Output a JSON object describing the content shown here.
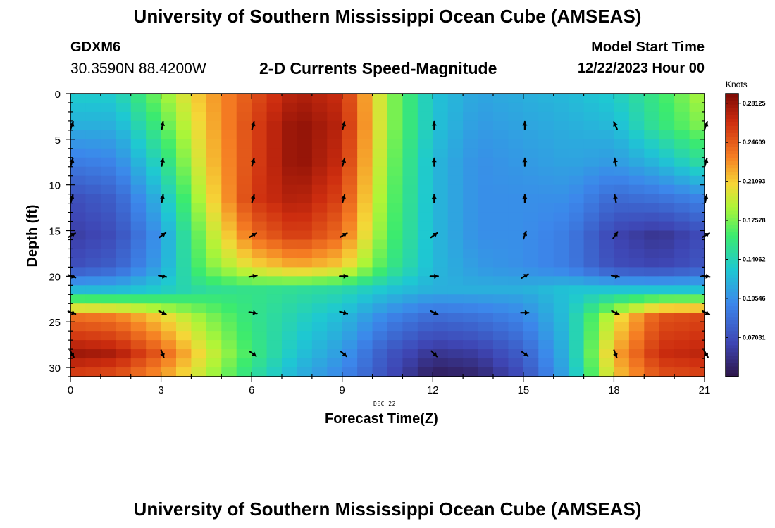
{
  "header": {
    "title": "University of Southern Mississippi Ocean Cube (AMSEAS)",
    "station_id": "GDXM6",
    "coordinates": "30.3590N  88.4200W",
    "model_start_label": "Model Start Time",
    "model_start_value": "12/22/2023 Hour 00"
  },
  "footer": {
    "title": "University of Southern Mississippi Ocean Cube (AMSEAS)"
  },
  "chart_data": {
    "type": "heatmap",
    "title": "2-D Currents Speed-Magnitude",
    "xlabel": "Forecast Time(Z)",
    "ylabel": "Depth (ft)",
    "date_marker": "DEC 22",
    "xlim": [
      0,
      21
    ],
    "ylim": [
      31,
      0
    ],
    "x_ticks": [
      0,
      3,
      6,
      9,
      12,
      15,
      18,
      21
    ],
    "y_ticks": [
      0,
      5,
      10,
      15,
      20,
      25,
      30
    ],
    "colorbar": {
      "title": "Knots",
      "range": [
        0.035,
        0.29
      ],
      "ticks": [
        "0.07031",
        "0.10546",
        "0.14062",
        "0.17578",
        "0.21093",
        "0.24609",
        "0.28125"
      ],
      "tick_values": [
        0.07031,
        0.10546,
        0.14062,
        0.17578,
        0.21093,
        0.24609,
        0.28125
      ]
    },
    "speed_knots": {
      "forecast_hours": [
        0,
        1.5,
        3,
        4.5,
        6,
        7.5,
        9,
        10.5,
        12,
        13.5,
        15,
        16.5,
        18,
        19.5,
        21
      ],
      "depths_ft": [
        0,
        3.5,
        7.5,
        11.5,
        15.5,
        19,
        21.5,
        24.5,
        28.5,
        31
      ],
      "values": [
        [
          0.135,
          0.135,
          0.18,
          0.22,
          0.25,
          0.275,
          0.265,
          0.185,
          0.13,
          0.115,
          0.12,
          0.125,
          0.135,
          0.16,
          0.19
        ],
        [
          0.12,
          0.12,
          0.165,
          0.215,
          0.255,
          0.285,
          0.27,
          0.185,
          0.13,
          0.11,
          0.115,
          0.12,
          0.125,
          0.155,
          0.18
        ],
        [
          0.095,
          0.1,
          0.145,
          0.21,
          0.255,
          0.285,
          0.265,
          0.18,
          0.125,
          0.105,
          0.11,
          0.115,
          0.11,
          0.125,
          0.15
        ],
        [
          0.07,
          0.08,
          0.125,
          0.2,
          0.26,
          0.275,
          0.255,
          0.175,
          0.125,
          0.105,
          0.105,
          0.105,
          0.085,
          0.09,
          0.1
        ],
        [
          0.06,
          0.07,
          0.11,
          0.185,
          0.24,
          0.26,
          0.24,
          0.17,
          0.125,
          0.105,
          0.105,
          0.095,
          0.065,
          0.055,
          0.07
        ],
        [
          0.07,
          0.08,
          0.115,
          0.175,
          0.205,
          0.22,
          0.21,
          0.16,
          0.125,
          0.11,
          0.105,
          0.095,
          0.07,
          0.065,
          0.075
        ],
        [
          0.125,
          0.125,
          0.135,
          0.15,
          0.155,
          0.15,
          0.145,
          0.13,
          0.12,
          0.12,
          0.12,
          0.13,
          0.13,
          0.13,
          0.13
        ],
        [
          0.24,
          0.235,
          0.21,
          0.18,
          0.155,
          0.14,
          0.125,
          0.1,
          0.085,
          0.09,
          0.1,
          0.13,
          0.2,
          0.25,
          0.255
        ],
        [
          0.28,
          0.275,
          0.245,
          0.2,
          0.16,
          0.13,
          0.11,
          0.075,
          0.055,
          0.06,
          0.08,
          0.125,
          0.22,
          0.265,
          0.27
        ],
        [
          0.255,
          0.25,
          0.225,
          0.19,
          0.15,
          0.12,
          0.1,
          0.07,
          0.04,
          0.045,
          0.07,
          0.12,
          0.21,
          0.25,
          0.255
        ]
      ]
    },
    "vectors": {
      "times": [
        0,
        3,
        6,
        9,
        12,
        15,
        18,
        21
      ],
      "depths_ft": [
        3.5,
        7.5,
        11.5,
        15.5,
        20,
        24,
        28.5
      ],
      "direction_deg": [
        [
          20,
          10,
          15,
          15,
          0,
          0,
          -25,
          20
        ],
        [
          15,
          10,
          15,
          15,
          0,
          0,
          -10,
          15
        ],
        [
          15,
          10,
          15,
          15,
          0,
          0,
          -10,
          10
        ],
        [
          60,
          55,
          60,
          60,
          55,
          20,
          35,
          60
        ],
        [
          110,
          100,
          80,
          90,
          90,
          60,
          100,
          100
        ],
        [
          110,
          115,
          100,
          105,
          115,
          90,
          115,
          115
        ],
        [
          150,
          160,
          125,
          130,
          135,
          125,
          160,
          150
        ]
      ]
    }
  }
}
